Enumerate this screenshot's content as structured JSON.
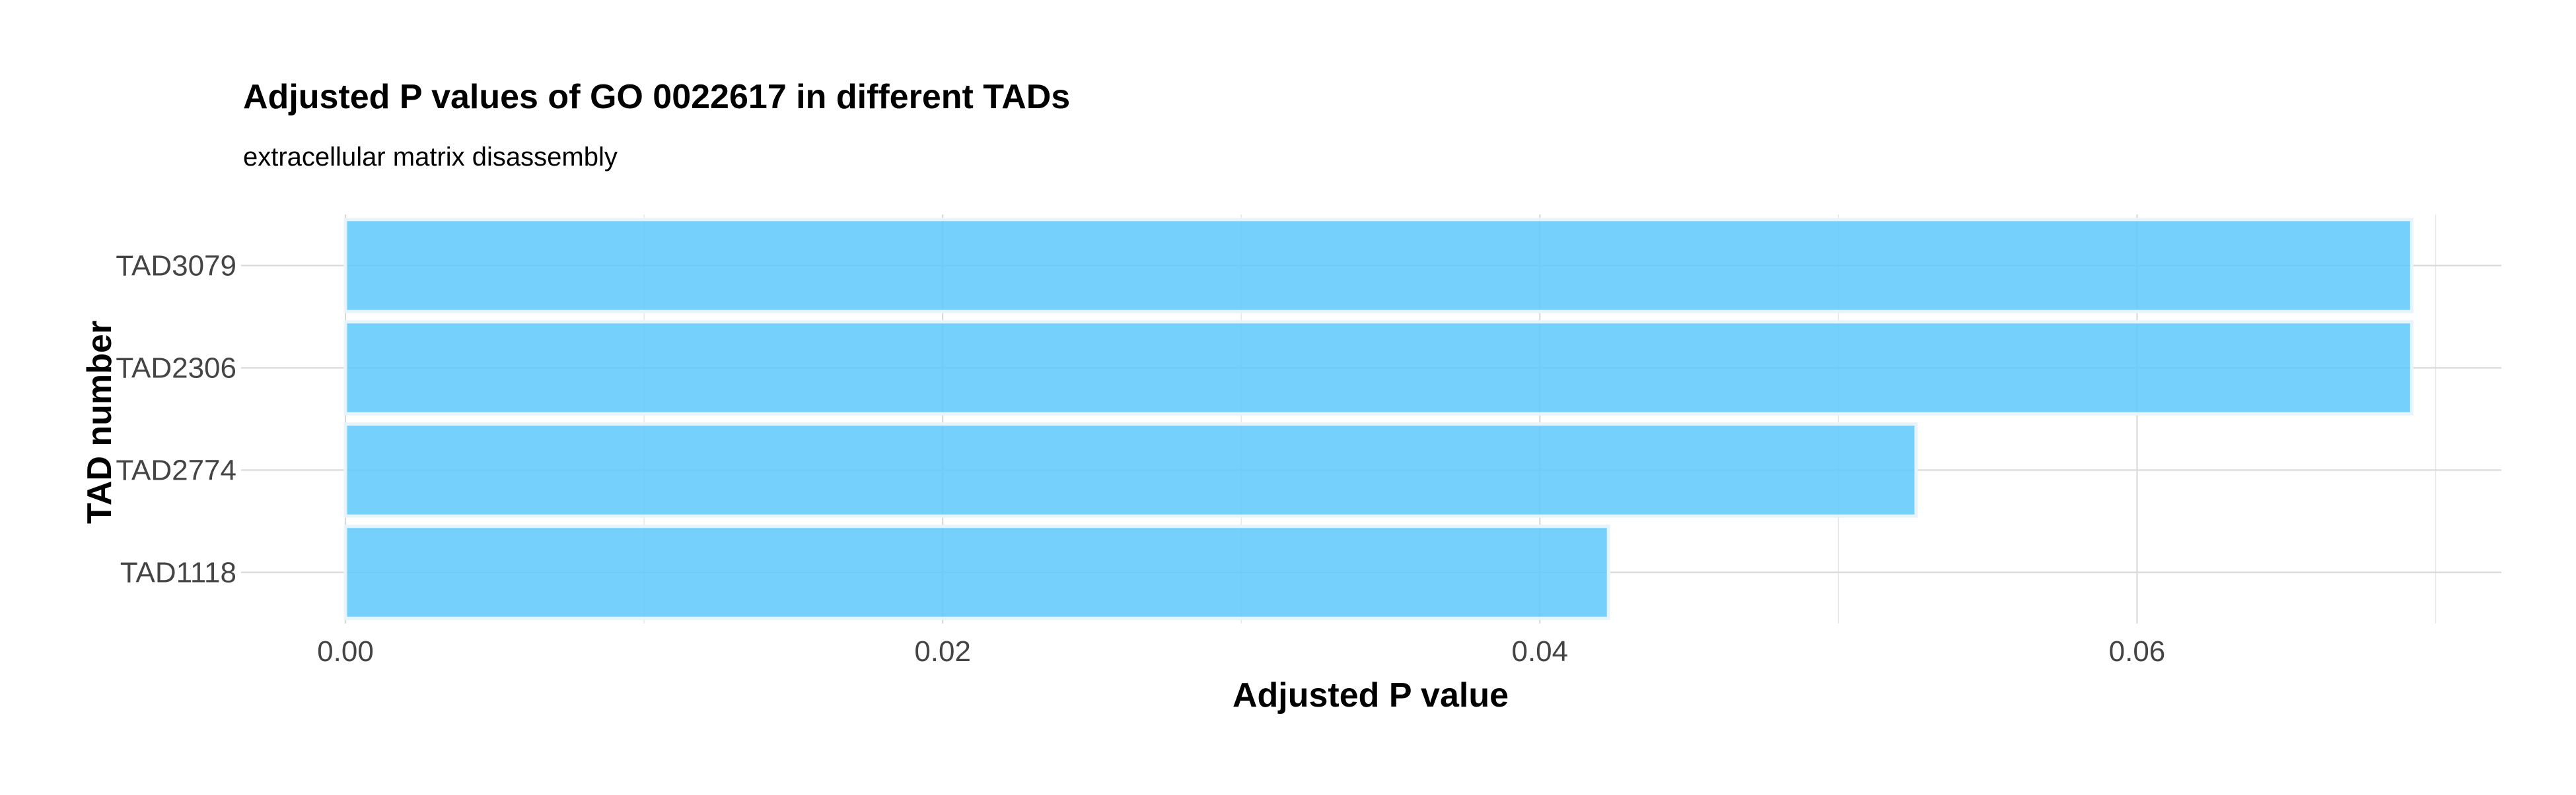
{
  "chart_data": {
    "type": "bar",
    "orientation": "horizontal",
    "title": "Adjusted P values of GO 0022617 in different TADs",
    "subtitle": "extracellular matrix disassembly",
    "xlabel": "Adjusted P value",
    "ylabel": "TAD number",
    "categories": [
      "TAD3079",
      "TAD2306",
      "TAD2774",
      "TAD1118"
    ],
    "values": [
      0.0692,
      0.0692,
      0.0526,
      0.0423
    ],
    "xlim": [
      0,
      0.0722
    ],
    "x_major_ticks": [
      0.0,
      0.02,
      0.04,
      0.06
    ],
    "x_tick_labels": [
      "0.00",
      "0.02",
      "0.04",
      "0.06"
    ],
    "x_minor_ticks": [
      0.01,
      0.03,
      0.05,
      0.07
    ],
    "bar_color": "#5ec8fb",
    "bar_outline_color": "#e8f4fb",
    "grid": true,
    "legend": "none"
  }
}
